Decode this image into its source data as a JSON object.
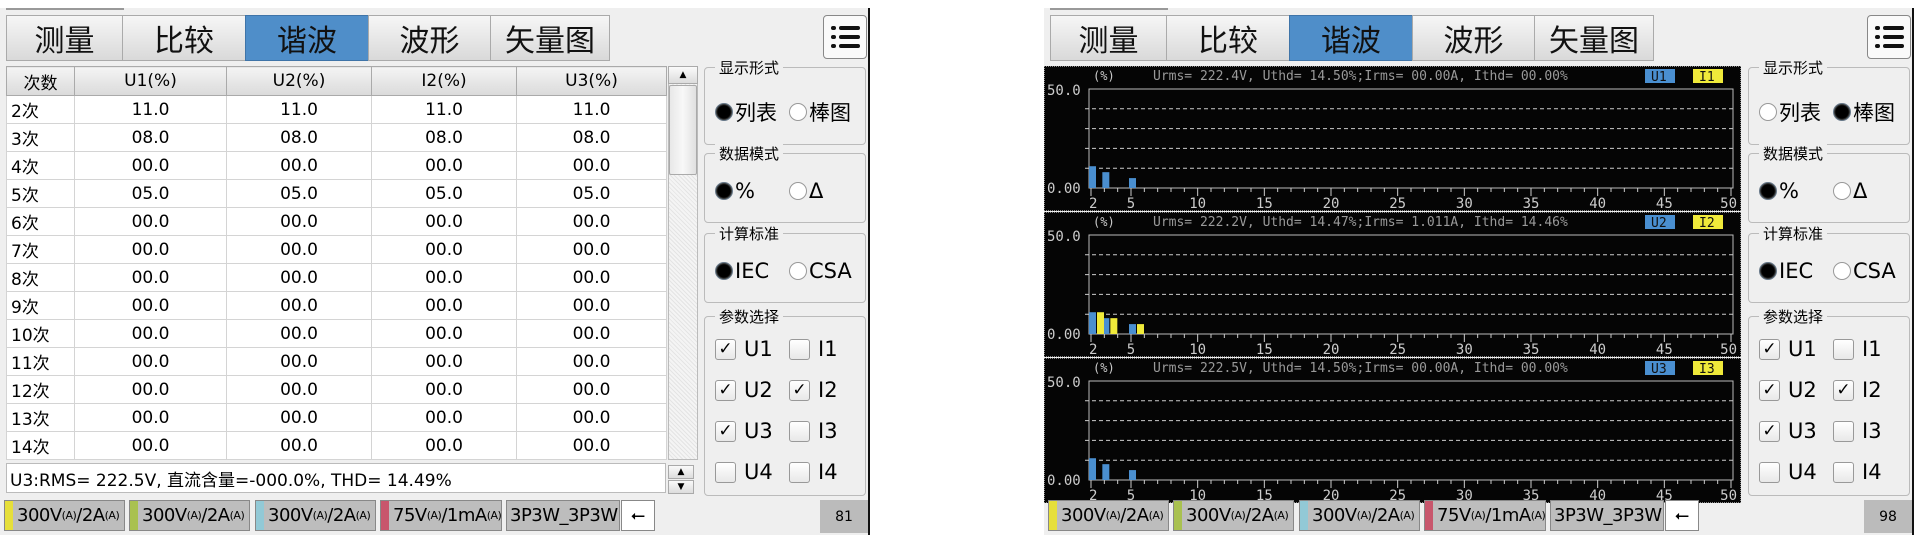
{
  "screens": [
    {
      "view": "table",
      "tabs": [
        "测量",
        "比较",
        "谐波",
        "波形",
        "矢量图"
      ],
      "active_tab": 2,
      "menu_icon": "list-menu-icon",
      "table": {
        "headers": [
          "次数",
          "U1(%)",
          "U2(%)",
          "I2(%)",
          "U3(%)"
        ],
        "rows": [
          [
            "2次",
            "11.0",
            "11.0",
            "11.0",
            "11.0"
          ],
          [
            "3次",
            "08.0",
            "08.0",
            "08.0",
            "08.0"
          ],
          [
            "4次",
            "00.0",
            "00.0",
            "00.0",
            "00.0"
          ],
          [
            "5次",
            "05.0",
            "05.0",
            "05.0",
            "05.0"
          ],
          [
            "6次",
            "00.0",
            "00.0",
            "00.0",
            "00.0"
          ],
          [
            "7次",
            "00.0",
            "00.0",
            "00.0",
            "00.0"
          ],
          [
            "8次",
            "00.0",
            "00.0",
            "00.0",
            "00.0"
          ],
          [
            "9次",
            "00.0",
            "00.0",
            "00.0",
            "00.0"
          ],
          [
            "10次",
            "00.0",
            "00.0",
            "00.0",
            "00.0"
          ],
          [
            "11次",
            "00.0",
            "00.0",
            "00.0",
            "00.0"
          ],
          [
            "12次",
            "00.0",
            "00.0",
            "00.0",
            "00.0"
          ],
          [
            "13次",
            "00.0",
            "00.0",
            "00.0",
            "00.0"
          ],
          [
            "14次",
            "00.0",
            "00.0",
            "00.0",
            "00.0"
          ]
        ]
      },
      "info_line": "U3:RMS= 222.5V, 直流含量=-000.0%, THD= 14.49%",
      "sidebar": {
        "display": {
          "title": "显示形式",
          "options": [
            "列表",
            "棒图"
          ],
          "selected": 0
        },
        "data_mode": {
          "title": "数据模式",
          "options": [
            "%",
            "Δ"
          ],
          "selected": 0
        },
        "standard": {
          "title": "计算标准",
          "options": [
            "IEC",
            "CSA"
          ],
          "selected": 0
        },
        "params": {
          "title": "参数选择",
          "items": [
            {
              "label": "U1",
              "checked": true
            },
            {
              "label": "I1",
              "checked": false
            },
            {
              "label": "U2",
              "checked": true
            },
            {
              "label": "I2",
              "checked": true
            },
            {
              "label": "U3",
              "checked": true
            },
            {
              "label": "I3",
              "checked": false
            },
            {
              "label": "U4",
              "checked": false
            },
            {
              "label": "I4",
              "checked": false
            }
          ]
        }
      },
      "status": {
        "items": [
          {
            "v": "300V",
            "s1": "(A)",
            "a": "/2A",
            "s2": "(A)",
            "color": "#e6df3a"
          },
          {
            "v": "300V",
            "s1": "(A)",
            "a": "/2A",
            "s2": "(A)",
            "color": "#a9c150"
          },
          {
            "v": "300V",
            "s1": "(A)",
            "a": "/2A",
            "s2": "(A)",
            "color": "#92c9d6"
          },
          {
            "v": "75V",
            "s1": "(A)",
            "a": "/1mA",
            "s2": "(A)",
            "color": "#c8566c"
          }
        ],
        "wiring": "3P3W_3P3W",
        "usb_icon": "usb-icon",
        "page": "81"
      }
    },
    {
      "view": "bars",
      "tabs": [
        "测量",
        "比较",
        "谐波",
        "波形",
        "矢量图"
      ],
      "active_tab": 2,
      "menu_icon": "list-menu-icon",
      "sidebar": {
        "display": {
          "title": "显示形式",
          "options": [
            "列表",
            "棒图"
          ],
          "selected": 1
        },
        "data_mode": {
          "title": "数据模式",
          "options": [
            "%",
            "Δ"
          ],
          "selected": 0
        },
        "standard": {
          "title": "计算标准",
          "options": [
            "IEC",
            "CSA"
          ],
          "selected": 0
        },
        "params": {
          "title": "参数选择",
          "items": [
            {
              "label": "U1",
              "checked": true
            },
            {
              "label": "I1",
              "checked": false
            },
            {
              "label": "U2",
              "checked": true
            },
            {
              "label": "I2",
              "checked": true
            },
            {
              "label": "U3",
              "checked": true
            },
            {
              "label": "I3",
              "checked": false
            },
            {
              "label": "U4",
              "checked": false
            },
            {
              "label": "I4",
              "checked": false
            }
          ]
        }
      },
      "status": {
        "items": [
          {
            "v": "300V",
            "s1": "(A)",
            "a": "/2A",
            "s2": "(A)",
            "color": "#e6df3a"
          },
          {
            "v": "300V",
            "s1": "(A)",
            "a": "/2A",
            "s2": "(A)",
            "color": "#a9c150"
          },
          {
            "v": "300V",
            "s1": "(A)",
            "a": "/2A",
            "s2": "(A)",
            "color": "#92c9d6"
          },
          {
            "v": "75V",
            "s1": "(A)",
            "a": "/1mA",
            "s2": "(A)",
            "color": "#c8566c"
          }
        ],
        "wiring": "3P3W_3P3W",
        "usb_icon": "usb-icon",
        "page": "98"
      }
    }
  ],
  "colors": {
    "u_series": "#4a8fd0",
    "i_series": "#f0ea3a",
    "tab_active": "#4f8ec9",
    "chart_bg": "#050505"
  },
  "chart_data": [
    {
      "type": "bar",
      "unit": "(%)",
      "summary": "Urms= 222.4V, Uthd= 14.50%;Irms= 00.00A, Ithd= 00.00%",
      "legend": [
        "U1",
        "I1"
      ],
      "legend_placement": "top-right",
      "ylim": [
        0,
        50
      ],
      "ytick_labels": [
        "0.00",
        "50.0"
      ],
      "grid": "dashed every 10",
      "xlim": [
        2,
        50
      ],
      "xticks": [
        2,
        5,
        10,
        15,
        20,
        25,
        30,
        35,
        40,
        45,
        50
      ],
      "x": [
        2,
        3,
        5
      ],
      "series": [
        {
          "name": "U1",
          "values": [
            11,
            8,
            5
          ],
          "color": "#4a8fd0"
        }
      ]
    },
    {
      "type": "bar",
      "unit": "(%)",
      "summary": "Urms= 222.2V, Uthd= 14.47%;Irms= 1.011A, Ithd= 14.46%",
      "legend": [
        "U2",
        "I2"
      ],
      "legend_placement": "top-right",
      "ylim": [
        0,
        50
      ],
      "ytick_labels": [
        "0.00",
        "50.0"
      ],
      "grid": "dashed every 10",
      "xlim": [
        2,
        50
      ],
      "xticks": [
        2,
        5,
        10,
        15,
        20,
        25,
        30,
        35,
        40,
        45,
        50
      ],
      "x": [
        2,
        3,
        5
      ],
      "series": [
        {
          "name": "U2",
          "values": [
            11,
            8,
            5
          ],
          "color": "#4a8fd0"
        },
        {
          "name": "I2",
          "values": [
            11,
            8,
            5
          ],
          "color": "#f0ea3a"
        }
      ]
    },
    {
      "type": "bar",
      "unit": "(%)",
      "summary": "Urms= 222.5V, Uthd= 14.50%;Irms= 00.00A, Ithd= 00.00%",
      "legend": [
        "U3",
        "I3"
      ],
      "legend_placement": "top-right",
      "ylim": [
        0,
        50
      ],
      "ytick_labels": [
        "0.00",
        "50.0"
      ],
      "grid": "dashed every 10",
      "xlim": [
        2,
        50
      ],
      "xticks": [
        2,
        5,
        10,
        15,
        20,
        25,
        30,
        35,
        40,
        45,
        50
      ],
      "x": [
        2,
        3,
        5
      ],
      "series": [
        {
          "name": "U3",
          "values": [
            11,
            8,
            5
          ],
          "color": "#4a8fd0"
        }
      ]
    }
  ]
}
